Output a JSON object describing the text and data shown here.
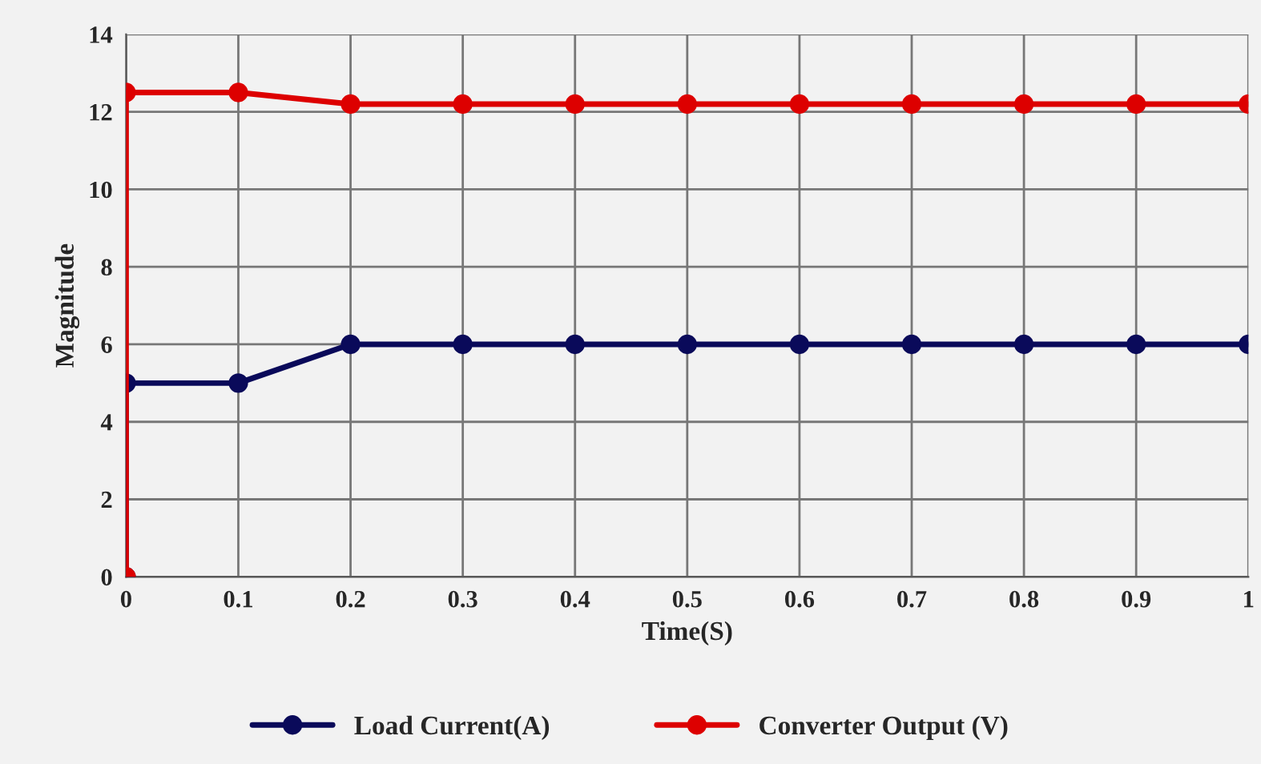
{
  "chart_data": {
    "type": "line",
    "xlabel": "Time(S)",
    "ylabel": "Magnitude",
    "xlim": [
      0,
      1
    ],
    "xticks": [
      0,
      0.1,
      0.2,
      0.3,
      0.4,
      0.5,
      0.6,
      0.7,
      0.8,
      0.9,
      1
    ],
    "ylim": [
      0,
      14
    ],
    "yticks": [
      0,
      2,
      4,
      6,
      8,
      10,
      12,
      14
    ],
    "grid": true,
    "legend": "bottom",
    "marker": "circle",
    "line_style": "solid",
    "series": [
      {
        "name": "Load Current(A)",
        "color": "#0a0a5a",
        "x": [
          0,
          0,
          0.1,
          0.2,
          0.3,
          0.4,
          0.5,
          0.6,
          0.7,
          0.8,
          0.9,
          1
        ],
        "values": [
          0,
          5,
          5,
          6,
          6,
          6,
          6,
          6,
          6,
          6,
          6,
          6
        ]
      },
      {
        "name": "Converter Output (V)",
        "color": "#dd0000",
        "x": [
          0,
          0,
          0.1,
          0.2,
          0.3,
          0.4,
          0.5,
          0.6,
          0.7,
          0.8,
          0.9,
          1
        ],
        "values": [
          0,
          12.5,
          12.5,
          12.2,
          12.2,
          12.2,
          12.2,
          12.2,
          12.2,
          12.2,
          12.2,
          12.2
        ]
      }
    ]
  }
}
